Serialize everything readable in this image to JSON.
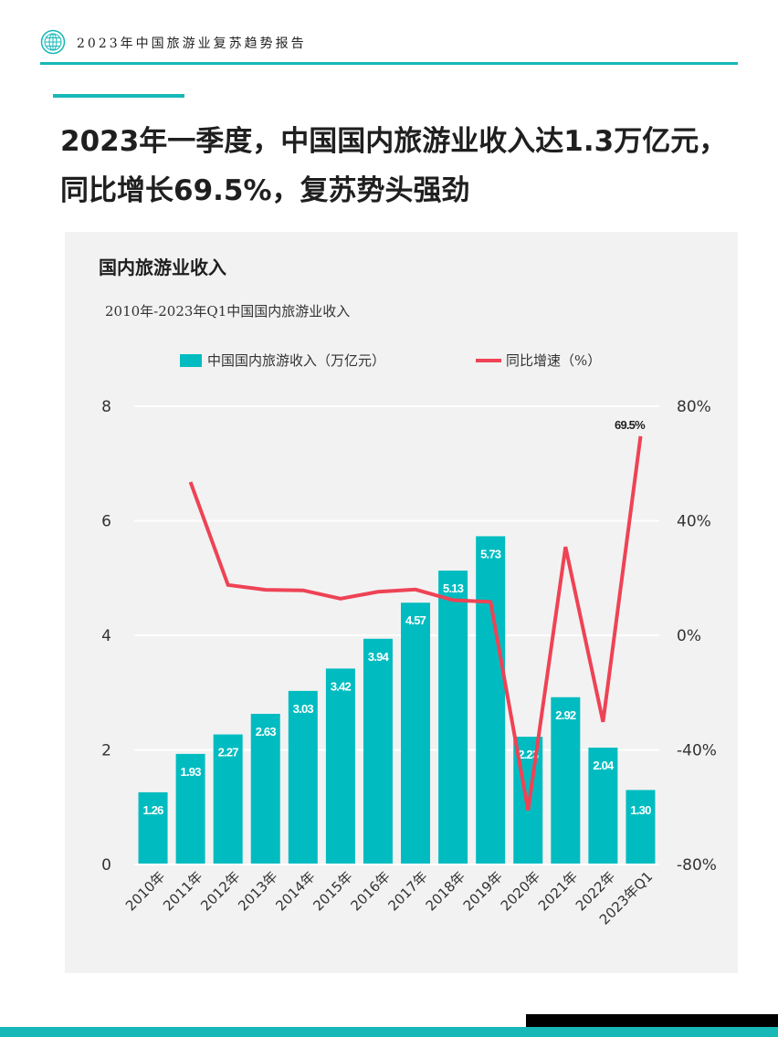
{
  "header": {
    "title": "2023年中国旅游业复苏趋势报告",
    "logo_icon": "globe-icon"
  },
  "headline": {
    "line1": "2023年一季度，中国国内旅游业收入达1.3万亿元，",
    "line2": "同比增长69.5%，复苏势头强劲"
  },
  "panel": {
    "title": "国内旅游业收入"
  },
  "colors": {
    "accent": "#16b8b8",
    "bar": "#00bcc0",
    "line": "#ee4355",
    "panel_bg": "#f2f2f2"
  },
  "chart_data": {
    "type": "bar",
    "title": "",
    "subtitle": "2010年-2023年Q1中国国内旅游业收入",
    "categories": [
      "2010年",
      "2011年",
      "2012年",
      "2013年",
      "2014年",
      "2015年",
      "2016年",
      "2017年",
      "2018年",
      "2019年",
      "2020年",
      "2021年",
      "2022年",
      "2023年Q1"
    ],
    "series": [
      {
        "name": "中国国内旅游收入（万亿元）",
        "kind": "bar",
        "axis": "left",
        "values": [
          1.26,
          1.93,
          2.27,
          2.63,
          3.03,
          3.42,
          3.94,
          4.57,
          5.13,
          5.73,
          2.23,
          2.92,
          2.04,
          1.3
        ],
        "labels": [
          "1.26",
          "1.93",
          "2.27",
          "2.63",
          "3.03",
          "3.42",
          "3.94",
          "4.57",
          "5.13",
          "5.73",
          "2.23",
          "2.92",
          "2.04",
          "1.30"
        ]
      },
      {
        "name": "同比增速（%）",
        "kind": "line",
        "axis": "right",
        "values": [
          null,
          53.5,
          17.6,
          15.9,
          15.7,
          12.8,
          15.2,
          16.0,
          12.3,
          11.7,
          -61.1,
          30.9,
          -30.2,
          69.5
        ],
        "point_label": {
          "index": 13,
          "text": "69.5%"
        }
      }
    ],
    "ylim_left": [
      0,
      8
    ],
    "yticks_left": [
      "0",
      "2",
      "4",
      "6",
      "8"
    ],
    "ylim_right": [
      -80,
      80
    ],
    "yticks_right": [
      "-80%",
      "-40%",
      "0%",
      "40%",
      "80%"
    ],
    "grid": true,
    "legend": "top"
  }
}
